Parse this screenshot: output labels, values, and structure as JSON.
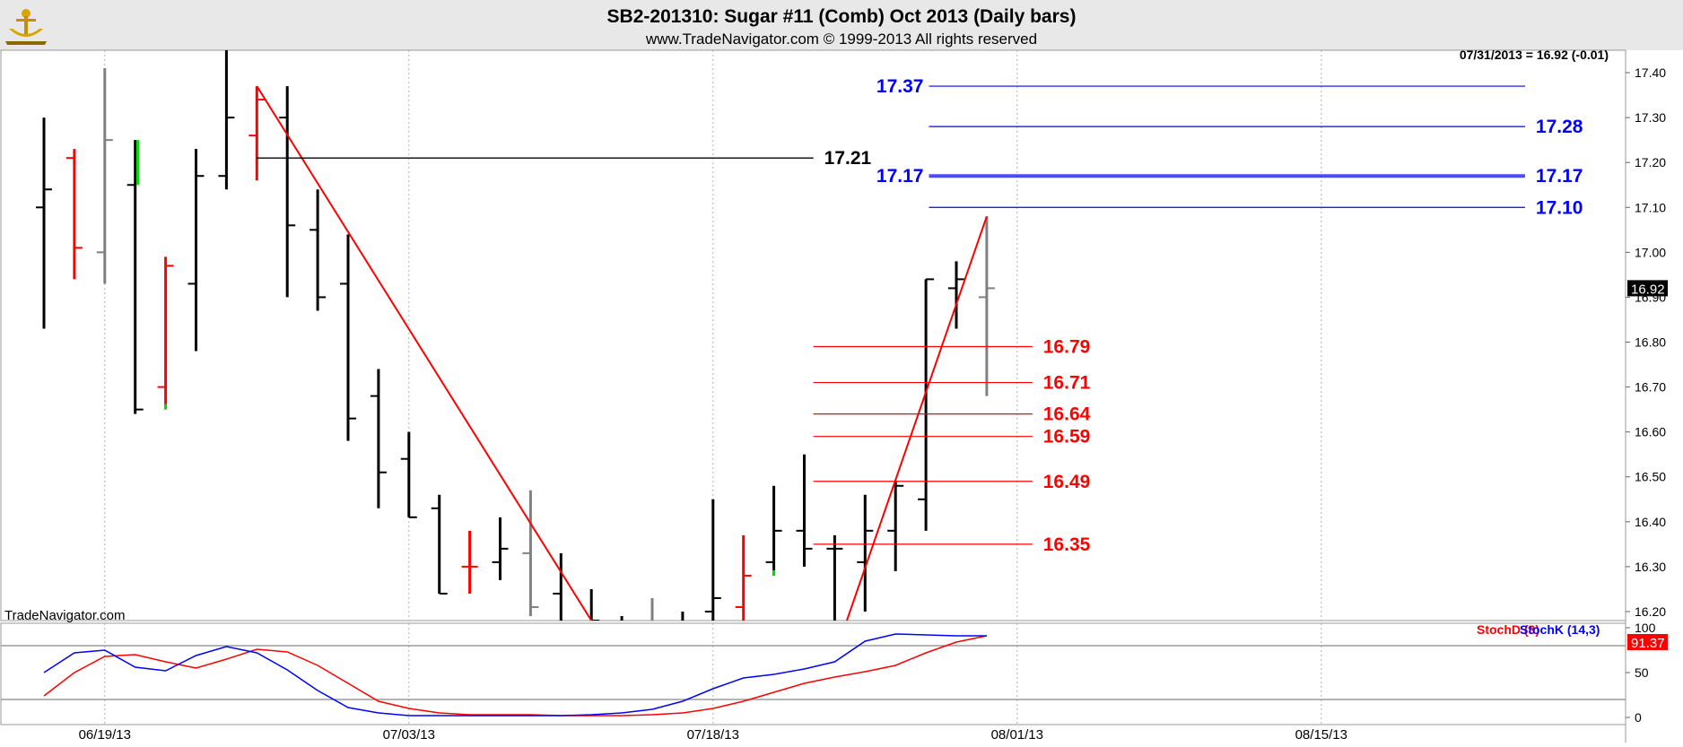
{
  "header": {
    "title": "SB2-201310:  Sugar #11 (Comb) Oct 2013  (Daily bars)",
    "copyright": "www.TradeNavigator.com © 1999-2013 All rights reserved",
    "last_value": "07/31/2013 = 16.92 (-0.01)",
    "watermark": "TradeNavigator.com",
    "logo": "trade-navigator-anchor-logo"
  },
  "colors": {
    "background": "#ffffff",
    "header_bg": "#e8e8e8",
    "bar_black": "#000000",
    "bar_red": "#ff0000",
    "bar_gray": "#808080",
    "accent_green": "#00e000",
    "blue_levels": "#0000ff",
    "red_levels": "#ff0000",
    "stoch_d": "#ff0000",
    "stoch_k": "#0000ff"
  },
  "chart_data": [
    {
      "type": "ohlc",
      "title": "SB2-201310:  Sugar #11 (Comb) Oct 2013  (Daily bars)",
      "ylim": [
        16.18,
        17.45
      ],
      "y_ticks": [
        "17.40",
        "17.30",
        "17.20",
        "17.10",
        "17.00",
        "16.90",
        "16.80",
        "16.70",
        "16.60",
        "16.50",
        "16.40",
        "16.30",
        "16.20"
      ],
      "x_ticks": [
        {
          "label": "06/19/13",
          "index": 2
        },
        {
          "label": "07/03/13",
          "index": 12
        },
        {
          "label": "07/18/13",
          "index": 22
        },
        {
          "label": "08/01/13",
          "index": 32
        },
        {
          "label": "08/15/13",
          "index": 42
        }
      ],
      "bars": [
        {
          "o": 17.1,
          "h": 17.3,
          "l": 16.83,
          "c": 17.14,
          "color": "black"
        },
        {
          "o": 17.21,
          "h": 17.23,
          "l": 16.94,
          "c": 17.01,
          "color": "red"
        },
        {
          "o": 17.0,
          "h": 17.41,
          "l": 16.93,
          "c": 17.25,
          "color": "gray"
        },
        {
          "o": 17.15,
          "h": 17.25,
          "l": 16.64,
          "c": 16.65,
          "color": "black",
          "green_open": true
        },
        {
          "o": 16.7,
          "h": 16.99,
          "l": 16.65,
          "c": 16.97,
          "color": "red",
          "green_low": true
        },
        {
          "o": 16.93,
          "h": 17.23,
          "l": 16.78,
          "c": 17.17,
          "color": "black"
        },
        {
          "o": 17.17,
          "h": 17.45,
          "l": 17.14,
          "c": 17.3,
          "color": "black"
        },
        {
          "o": 17.26,
          "h": 17.37,
          "l": 17.16,
          "c": 17.34,
          "color": "red"
        },
        {
          "o": 17.3,
          "h": 17.37,
          "l": 16.9,
          "c": 17.06,
          "color": "black"
        },
        {
          "o": 17.05,
          "h": 17.14,
          "l": 16.87,
          "c": 16.9,
          "color": "black"
        },
        {
          "o": 16.93,
          "h": 17.04,
          "l": 16.58,
          "c": 16.63,
          "color": "black"
        },
        {
          "o": 16.68,
          "h": 16.74,
          "l": 16.43,
          "c": 16.51,
          "color": "black"
        },
        {
          "o": 16.54,
          "h": 16.6,
          "l": 16.41,
          "c": 16.41,
          "color": "black"
        },
        {
          "o": 16.43,
          "h": 16.46,
          "l": 16.24,
          "c": 16.24,
          "color": "black"
        },
        {
          "o": 16.3,
          "h": 16.38,
          "l": 16.24,
          "c": 16.3,
          "color": "red"
        },
        {
          "o": 16.31,
          "h": 16.41,
          "l": 16.27,
          "c": 16.34,
          "color": "black"
        },
        {
          "o": 16.33,
          "h": 16.47,
          "l": 16.19,
          "c": 16.21,
          "color": "gray"
        },
        {
          "o": 16.24,
          "h": 16.33,
          "l": 16.1,
          "c": 16.12,
          "color": "black"
        },
        {
          "o": 16.15,
          "h": 16.25,
          "l": 16.1,
          "c": 16.18,
          "color": "black"
        },
        {
          "o": 16.14,
          "h": 16.19,
          "l": 16.05,
          "c": 16.13,
          "color": "black"
        },
        {
          "o": 16.15,
          "h": 16.23,
          "l": 16.1,
          "c": 16.17,
          "color": "gray"
        },
        {
          "o": 16.14,
          "h": 16.2,
          "l": 16.08,
          "c": 16.15,
          "color": "black"
        },
        {
          "o": 16.2,
          "h": 16.45,
          "l": 16.1,
          "c": 16.23,
          "color": "black"
        },
        {
          "o": 16.21,
          "h": 16.37,
          "l": 16.15,
          "c": 16.28,
          "color": "red"
        },
        {
          "o": 16.31,
          "h": 16.48,
          "l": 16.28,
          "c": 16.38,
          "color": "black",
          "green_low": true
        },
        {
          "o": 16.38,
          "h": 16.55,
          "l": 16.3,
          "c": 16.34,
          "color": "black"
        },
        {
          "o": 16.34,
          "h": 16.37,
          "l": 16.15,
          "c": 16.34,
          "color": "black"
        },
        {
          "o": 16.31,
          "h": 16.46,
          "l": 16.2,
          "c": 16.38,
          "color": "black"
        },
        {
          "o": 16.38,
          "h": 16.49,
          "l": 16.29,
          "c": 16.48,
          "color": "black"
        },
        {
          "o": 16.45,
          "h": 16.94,
          "l": 16.38,
          "c": 16.94,
          "color": "black"
        },
        {
          "o": 16.92,
          "h": 16.98,
          "l": 16.83,
          "c": 16.94,
          "color": "black"
        },
        {
          "o": 16.9,
          "h": 17.08,
          "l": 16.68,
          "c": 16.92,
          "color": "gray"
        }
      ],
      "trendlines": [
        {
          "x1": 7.0,
          "y1": 17.37,
          "x2": 18.0,
          "y2": 16.18,
          "color": "red"
        },
        {
          "x1": 26.4,
          "y1": 16.18,
          "x2": 31.0,
          "y2": 17.08,
          "color": "red"
        },
        {
          "x1": 7.0,
          "y1": 17.21,
          "x2": 25.3,
          "y2": 17.21,
          "color": "black"
        }
      ],
      "levels": [
        {
          "value": 17.37,
          "text": "17.37",
          "label_side": "left",
          "x1": 29.1,
          "x2": 48.7,
          "color": "blue"
        },
        {
          "value": 17.28,
          "text": "17.28",
          "label_side": "right",
          "x1": 29.1,
          "x2": 48.7,
          "color": "blue"
        },
        {
          "value": 17.17,
          "text": "17.17",
          "label_side": "both",
          "x1": 29.1,
          "x2": 48.7,
          "color": "blue",
          "thick": true
        },
        {
          "value": 17.1,
          "text": "17.10",
          "label_side": "right",
          "x1": 29.1,
          "x2": 48.7,
          "color": "blue"
        },
        {
          "value": 17.21,
          "text": "17.21",
          "label_side": "right-of-end",
          "x1": 7.0,
          "x2": 25.3,
          "color": "black"
        },
        {
          "value": 16.79,
          "text": "16.79",
          "label_side": "right-of-end",
          "x1": 25.3,
          "x2": 32.5,
          "color": "red"
        },
        {
          "value": 16.71,
          "text": "16.71",
          "label_side": "right-of-end",
          "x1": 25.3,
          "x2": 32.5,
          "color": "red"
        },
        {
          "value": 16.64,
          "text": "16.64",
          "label_side": "right-of-end",
          "x1": 25.3,
          "x2": 32.5,
          "color": "red"
        },
        {
          "value": 16.59,
          "text": "16.59",
          "label_side": "right-of-end",
          "x1": 25.3,
          "x2": 32.5,
          "color": "red"
        },
        {
          "value": 16.49,
          "text": "16.49",
          "label_side": "right-of-end",
          "x1": 25.3,
          "x2": 32.5,
          "color": "red"
        },
        {
          "value": 16.35,
          "text": "16.35",
          "label_side": "right-of-end",
          "x1": 25.3,
          "x2": 32.5,
          "color": "red"
        }
      ],
      "last_price_tag": "16.92"
    },
    {
      "type": "line",
      "ylim": [
        0,
        100
      ],
      "y_ticks": [
        "100",
        "50",
        "0"
      ],
      "reference_lines": [
        20,
        80
      ],
      "legend": [
        {
          "name": "StochD (3)",
          "color": "red"
        },
        {
          "name": "StochK (14,3)",
          "color": "blue"
        }
      ],
      "last_value_tag": "91.37",
      "series": [
        {
          "name": "StochD (3)",
          "color": "red",
          "values": [
            24,
            50,
            68,
            70,
            62,
            55,
            65,
            76,
            73,
            58,
            38,
            18,
            10,
            5,
            3,
            3,
            3,
            2,
            2,
            2,
            3,
            5,
            10,
            18,
            28,
            38,
            45,
            51,
            58,
            72,
            84,
            91
          ]
        },
        {
          "name": "StochK (14,3)",
          "color": "blue",
          "values": [
            50,
            72,
            75,
            56,
            52,
            69,
            79,
            72,
            53,
            30,
            11,
            5,
            2,
            2,
            2,
            2,
            2,
            2,
            3,
            5,
            9,
            18,
            32,
            44,
            48,
            54,
            62,
            85,
            93,
            92,
            91,
            91
          ]
        }
      ]
    }
  ]
}
